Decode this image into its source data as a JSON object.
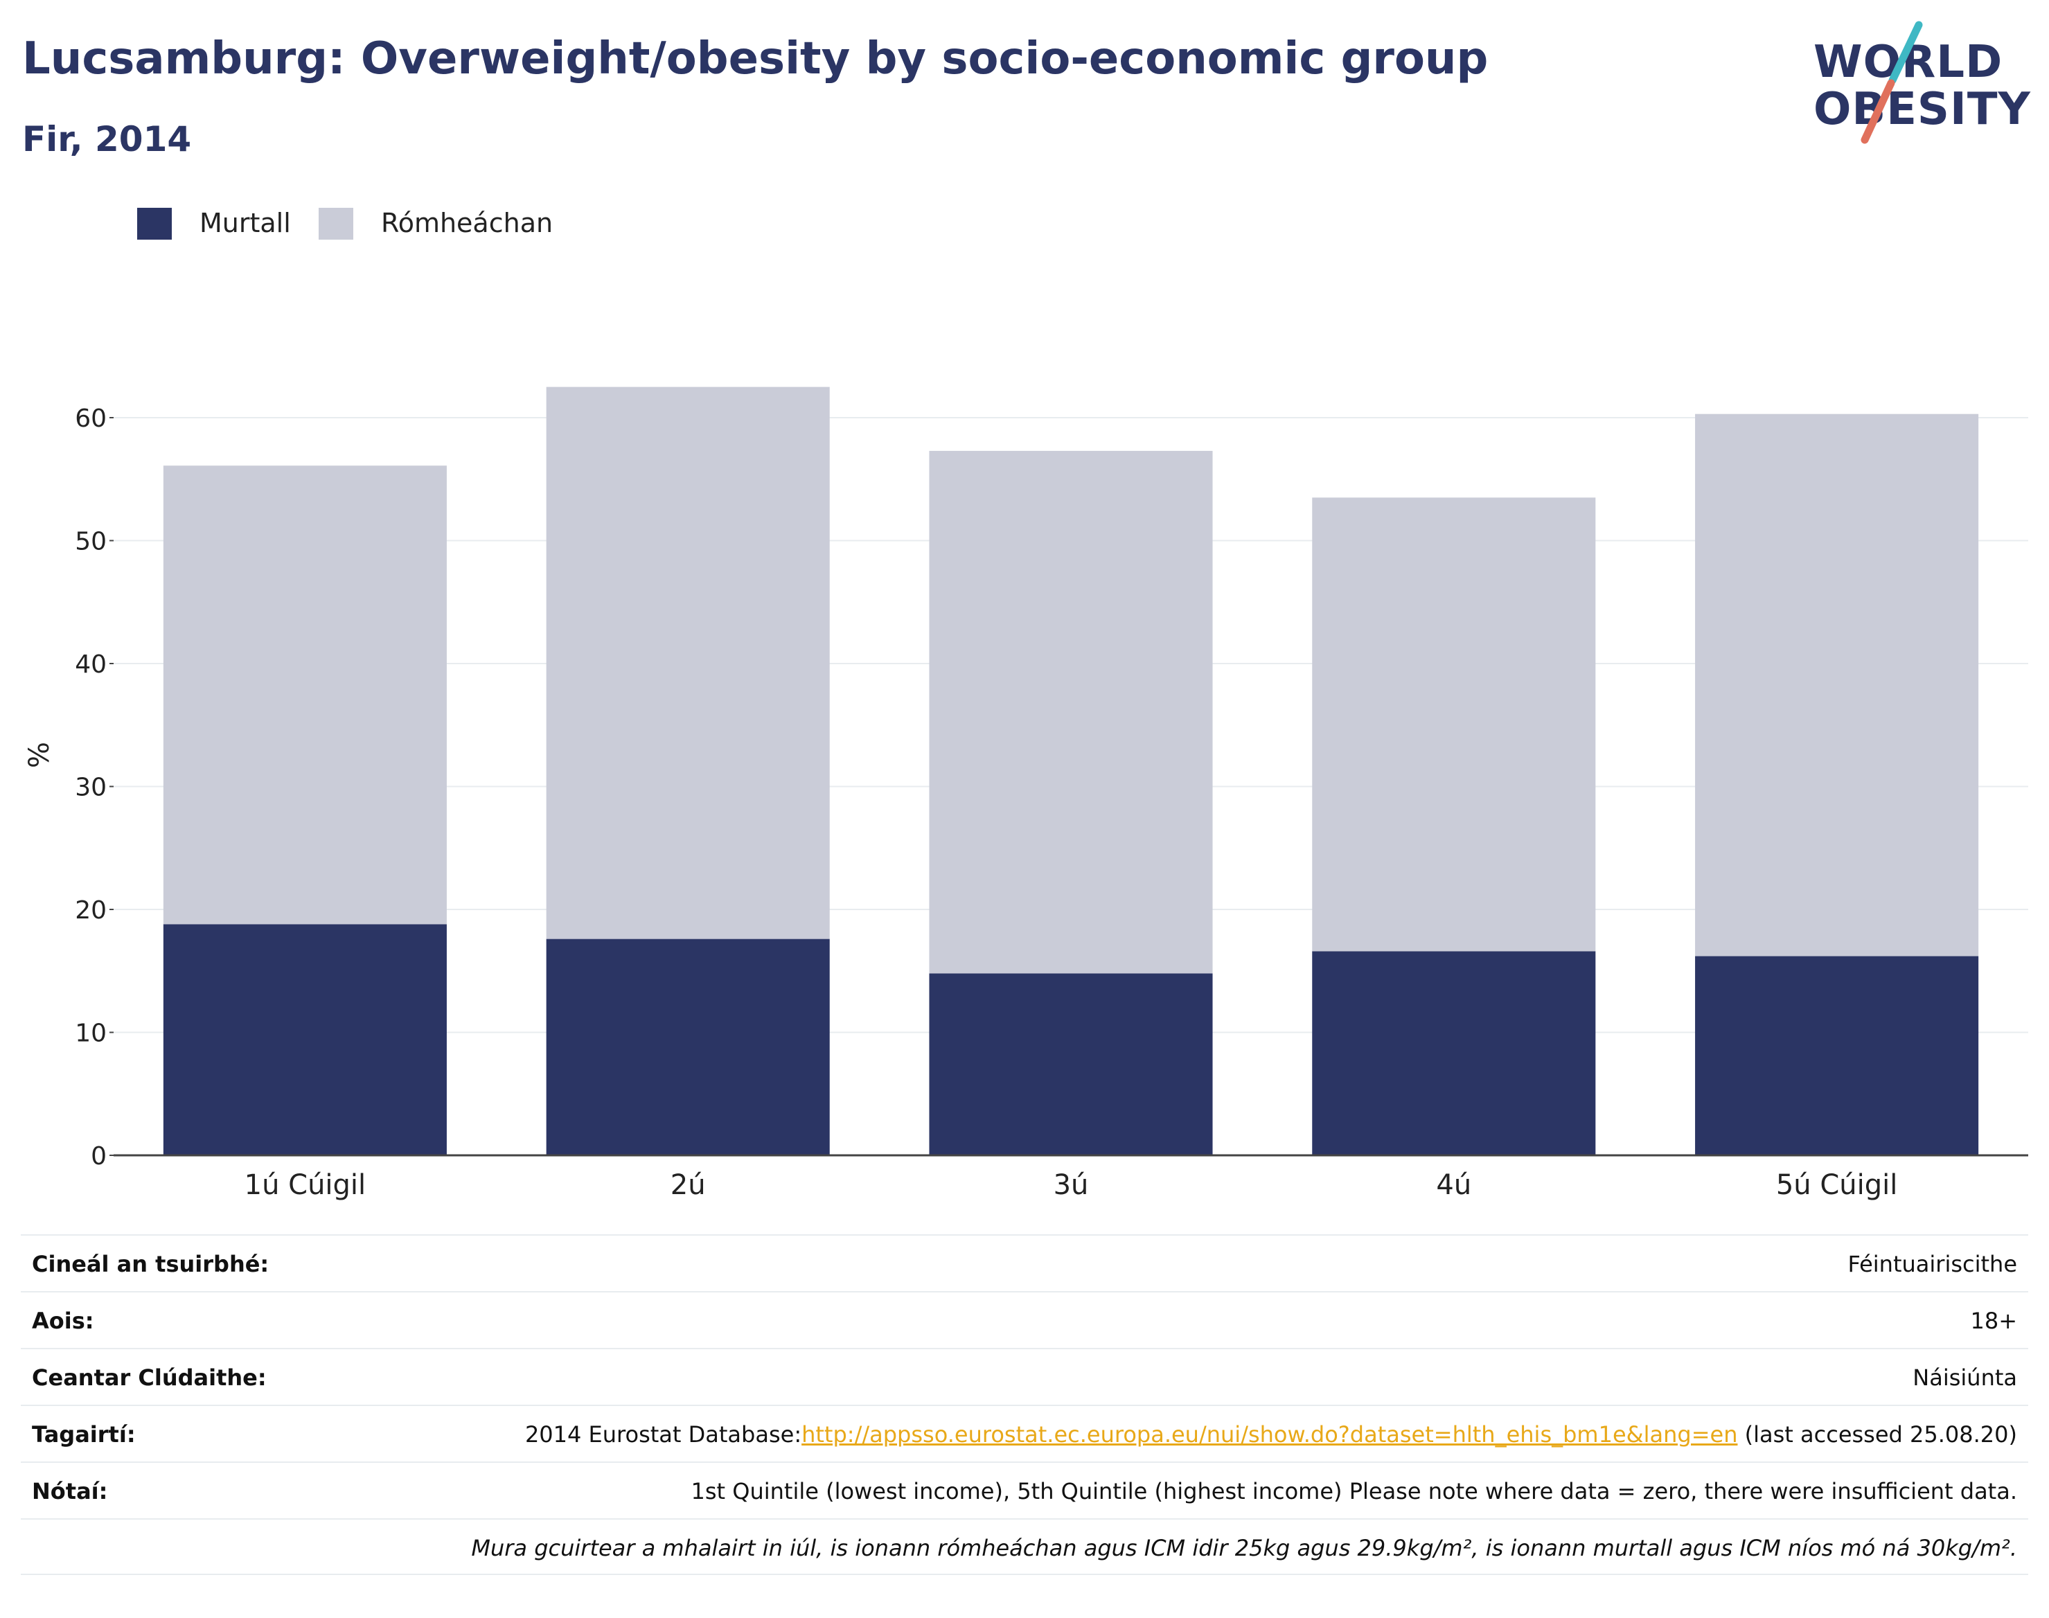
{
  "header": {
    "title": "Lucsamburg: Overweight/obesity by socio-economic group",
    "subtitle": "Fir, 2014"
  },
  "logo": {
    "line1": "WORLD",
    "line2": "OBESITY"
  },
  "legend": [
    {
      "label": "Murtall",
      "color": "#2b3564"
    },
    {
      "label": "Rómheáchan",
      "color": "#caccd8"
    }
  ],
  "chart_data": {
    "type": "bar",
    "stacked": true,
    "categories": [
      "1ú Cúigil",
      "2ú",
      "3ú",
      "4ú",
      "5ú Cúigil"
    ],
    "series": [
      {
        "name": "Murtall",
        "color": "#2b3564",
        "values": [
          18.8,
          17.6,
          14.8,
          16.6,
          16.2
        ]
      },
      {
        "name": "Rómheáchan",
        "color": "#caccd8",
        "values": [
          37.3,
          44.9,
          42.5,
          36.9,
          44.1
        ]
      }
    ],
    "ylabel": "%",
    "ylim": [
      0,
      65
    ],
    "yticks": [
      0,
      10,
      20,
      30,
      40,
      50,
      60
    ],
    "grid": true,
    "legend_position": "top-left"
  },
  "info": [
    {
      "label": "Cineál an tsuirbhé:",
      "value": "Féintuairiscithe"
    },
    {
      "label": "Aois:",
      "value": "18+"
    },
    {
      "label": "Ceantar Clúdaithe:",
      "value": "Náisiúnta"
    },
    {
      "label": "Tagairtí:",
      "prefix": "2014 Eurostat Database:",
      "link": "http://appsso.eurostat.ec.europa.eu/nui/show.do?dataset=hlth_ehis_bm1e&lang=en",
      "suffix": " (last accessed 25.08.20)"
    },
    {
      "label": "Nótaí:",
      "value": "1st Quintile (lowest income), 5th Quintile (highest income) Please note where data = zero, there were insufficient data."
    },
    {
      "label": "",
      "value": "Mura gcuirtear a mhalairt in iúl, is ionann rómheáchan agus ICM idir 25kg agus 29.9kg/m², is ionann murtall agus ICM níos mó ná 30kg/m²."
    }
  ]
}
